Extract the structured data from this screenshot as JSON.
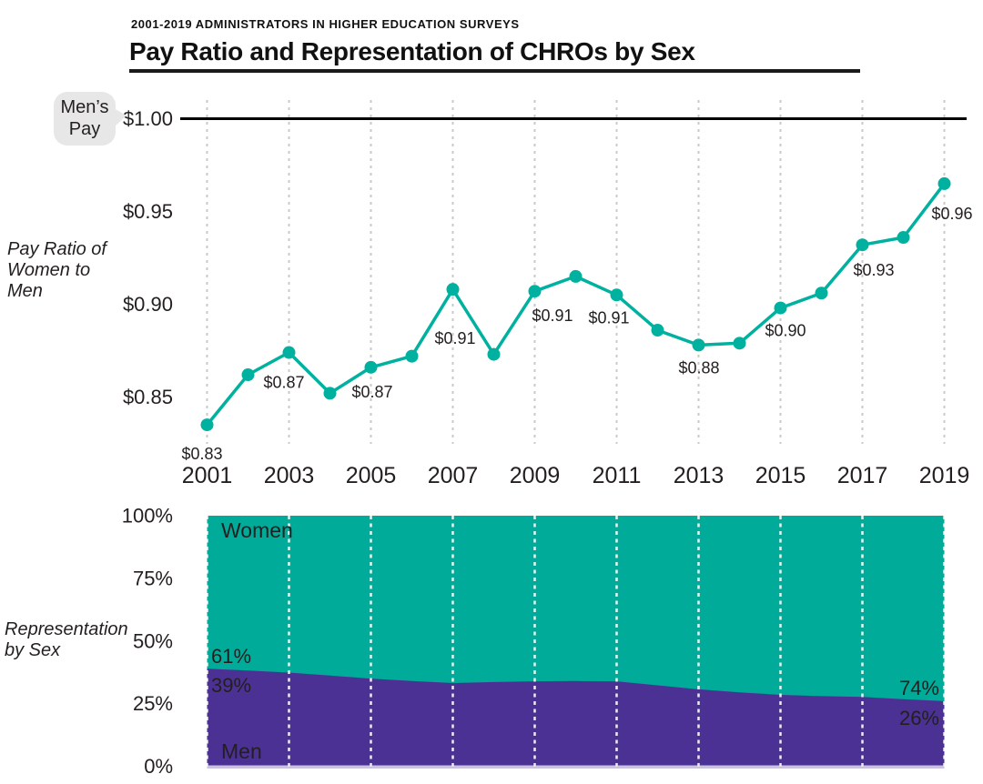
{
  "header": {
    "eyebrow": "2001-2019 ADMINISTRATORS IN HIGHER EDUCATION SURVEYS",
    "title": "Pay Ratio and Representation of CHROs by Sex"
  },
  "colors": {
    "teal_area": "#00AC99",
    "teal_line": "#00B1A0",
    "purple_area": "#4B3193",
    "text": "#231F20",
    "gridline_gray": "#C9C9C9",
    "benchmark_black": "#000000",
    "bubble_gray": "#E7E7E7",
    "area_bottom_edge": "#C9C2E0",
    "white": "#FFFFFF"
  },
  "pay_ratio_chart": {
    "side_label": "Pay Ratio of\nWomen to\nMen",
    "benchmark_callout": "Men’s\nPay"
  },
  "representation_chart": {
    "side_label": "Representation\nby Sex"
  },
  "chart_data": [
    {
      "type": "line",
      "title": "Pay Ratio of Women to Men",
      "x": [
        2001,
        2002,
        2003,
        2004,
        2005,
        2006,
        2007,
        2008,
        2009,
        2010,
        2011,
        2012,
        2013,
        2014,
        2015,
        2016,
        2017,
        2018,
        2019
      ],
      "y": [
        0.835,
        0.862,
        0.874,
        0.852,
        0.866,
        0.872,
        0.908,
        0.873,
        0.907,
        0.915,
        0.905,
        0.886,
        0.878,
        0.879,
        0.898,
        0.906,
        0.932,
        0.936,
        0.965
      ],
      "point_labels": [
        "$0.83",
        null,
        "$0.87",
        null,
        "$0.87",
        null,
        "$0.91",
        null,
        "$0.91",
        null,
        "$0.91",
        null,
        "$0.88",
        null,
        "$0.90",
        null,
        "$0.93",
        null,
        "$0.96"
      ],
      "y_ticks": [
        {
          "value": 1.0,
          "label": "$1.00"
        },
        {
          "value": 0.95,
          "label": "$0.95"
        },
        {
          "value": 0.9,
          "label": "$0.90"
        },
        {
          "value": 0.85,
          "label": "$0.85"
        }
      ],
      "x_ticks": [
        2001,
        2003,
        2005,
        2007,
        2009,
        2011,
        2013,
        2015,
        2017,
        2019
      ],
      "benchmark": {
        "value": 1.0,
        "tick_label": "$1.00",
        "callout": "Men’s Pay"
      },
      "ylim": [
        0.82,
        1.005
      ],
      "grid": "vertical-dashed-gray"
    },
    {
      "type": "area",
      "title": "Representation by Sex",
      "x": [
        2001,
        2002,
        2003,
        2004,
        2005,
        2006,
        2007,
        2008,
        2009,
        2010,
        2011,
        2012,
        2013,
        2014,
        2015,
        2016,
        2017,
        2018,
        2019
      ],
      "series": [
        {
          "name": "Women",
          "color_key": "teal_area",
          "values": [
            61,
            61.8,
            62.6,
            63.8,
            65,
            66,
            66.8,
            66.4,
            66.1,
            66,
            66.1,
            67.7,
            69.3,
            70.5,
            71.5,
            72,
            72.3,
            73.2,
            74
          ]
        },
        {
          "name": "Men",
          "color_key": "purple_area",
          "values": [
            39,
            38.2,
            37.4,
            36.2,
            35,
            34,
            33.2,
            33.6,
            33.9,
            34,
            33.9,
            32.3,
            30.7,
            29.5,
            28.5,
            28,
            27.7,
            26.8,
            26
          ]
        }
      ],
      "y_ticks": [
        {
          "value": 100,
          "label": "100%"
        },
        {
          "value": 75,
          "label": "75%"
        },
        {
          "value": 50,
          "label": "50%"
        },
        {
          "value": 25,
          "label": "25%"
        },
        {
          "value": 0,
          "label": "0%"
        }
      ],
      "x_ticks": [
        2001,
        2003,
        2005,
        2007,
        2009,
        2011,
        2013,
        2015,
        2017,
        2019
      ],
      "annotations": [
        {
          "text": "Women",
          "role": "series-label",
          "series": "Women"
        },
        {
          "text": "Men",
          "role": "series-label",
          "series": "Men"
        },
        {
          "text": "61%",
          "role": "value-label",
          "series": "Women",
          "year": 2001
        },
        {
          "text": "39%",
          "role": "value-label",
          "series": "Men",
          "year": 2001
        },
        {
          "text": "74%",
          "role": "value-label",
          "series": "Women",
          "year": 2019
        },
        {
          "text": "26%",
          "role": "value-label",
          "series": "Men",
          "year": 2019
        }
      ],
      "ylim": [
        0,
        100
      ],
      "grid": "vertical-dashed-white",
      "stacked": true
    }
  ]
}
